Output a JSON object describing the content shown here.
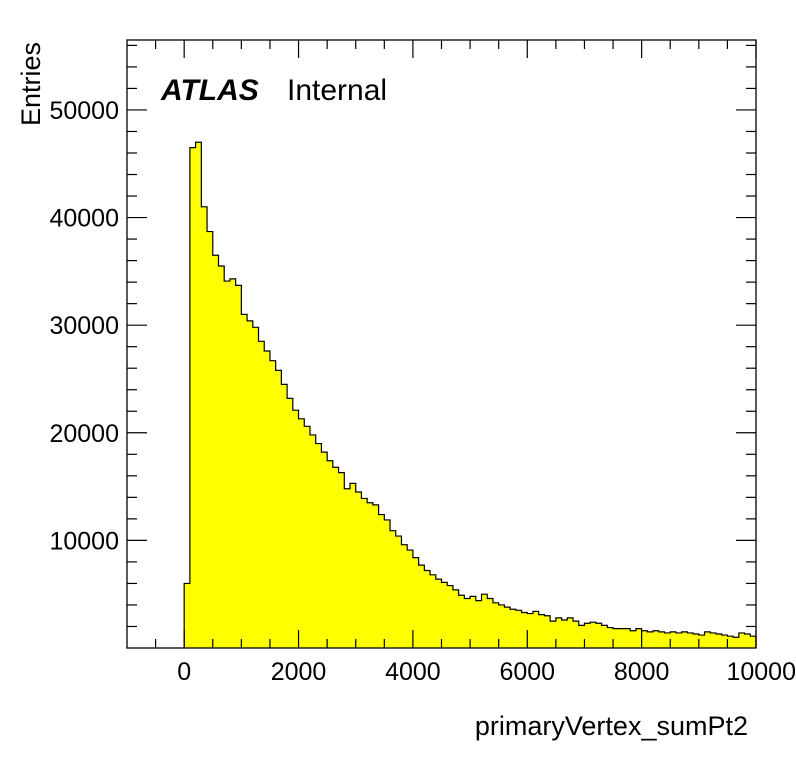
{
  "chart_data": {
    "type": "bar",
    "histogram": true,
    "experiment_label": "ATLAS",
    "status_label": "Internal",
    "xlabel": "primaryVertex_sumPt2",
    "ylabel": "Entries",
    "xlim": [
      -1000,
      10000
    ],
    "ylim": [
      0,
      56500
    ],
    "x_ticks": [
      0,
      2000,
      4000,
      6000,
      8000,
      10000
    ],
    "y_ticks": [
      10000,
      20000,
      30000,
      40000,
      50000
    ],
    "fill_color": "#ffff00",
    "line_color": "#000000",
    "grid": false,
    "legend": "none",
    "bin_width": 100,
    "bins_start": 0,
    "values": [
      6000,
      46500,
      47000,
      41000,
      38700,
      36500,
      35500,
      34100,
      34300,
      33700,
      31000,
      30400,
      29800,
      28500,
      27600,
      26700,
      25800,
      24500,
      23200,
      22100,
      21300,
      20600,
      19800,
      19000,
      18200,
      17400,
      16800,
      16300,
      14800,
      15300,
      14500,
      13900,
      13500,
      13300,
      12400,
      11900,
      10900,
      10400,
      9600,
      9100,
      8400,
      7700,
      7200,
      6800,
      6400,
      6100,
      5800,
      5400,
      4900,
      4600,
      4800,
      4400,
      5000,
      4600,
      4200,
      4000,
      3800,
      3600,
      3500,
      3300,
      3200,
      3400,
      3100,
      3000,
      2500,
      2800,
      2600,
      2800,
      2500,
      2100,
      2300,
      2400,
      2300,
      2100,
      1900,
      1800,
      1800,
      1800,
      1600,
      1800,
      1600,
      1500,
      1600,
      1500,
      1400,
      1500,
      1400,
      1500,
      1400,
      1300,
      1200,
      1500,
      1400,
      1300,
      1200,
      1100,
      1000,
      1400,
      1300,
      1100
    ]
  }
}
